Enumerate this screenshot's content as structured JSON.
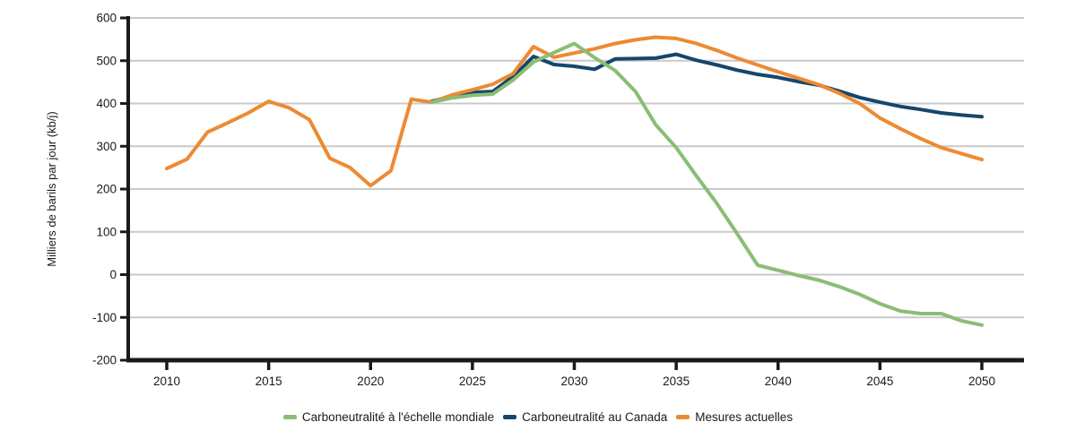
{
  "chart_data": {
    "type": "line",
    "title": "",
    "xlabel": "",
    "ylabel": "Milliers de barils par jour (kb/j)",
    "ylim": [
      -200,
      600
    ],
    "ytick_values": [
      600,
      500,
      400,
      300,
      200,
      100,
      0,
      -100,
      -200
    ],
    "xtick_values": [
      2010,
      2015,
      2020,
      2025,
      2030,
      2035,
      2040,
      2045,
      2050
    ],
    "grid": "horizontal",
    "legend_position": "bottom-center",
    "colors": {
      "grid": "#C9C9C9",
      "axis": "#1A1A1A",
      "text": "#1A1A1A",
      "background": "#FFFFFF"
    },
    "series": [
      {
        "name": "Carboneutralité à l'échelle mondiale",
        "color": "#8ABE75",
        "years": [
          2023,
          2024,
          2025,
          2026,
          2027,
          2028,
          2029,
          2030,
          2031,
          2032,
          2033,
          2034,
          2035,
          2036,
          2037,
          2038,
          2039,
          2040,
          2041,
          2042,
          2043,
          2044,
          2045,
          2046,
          2047,
          2048,
          2049,
          2050
        ],
        "values": [
          403,
          413,
          419,
          422,
          455,
          497,
          519,
          540,
          507,
          477,
          428,
          350,
          297,
          230,
          166,
          95,
          22,
          10,
          -2,
          -13,
          -28,
          -46,
          -68,
          -85,
          -91,
          -91,
          -108,
          -118
        ]
      },
      {
        "name": "Carboneutralité au Canada",
        "color": "#16466B",
        "years": [
          2023,
          2024,
          2025,
          2026,
          2027,
          2028,
          2029,
          2030,
          2031,
          2032,
          2033,
          2034,
          2035,
          2036,
          2037,
          2038,
          2039,
          2040,
          2041,
          2042,
          2043,
          2044,
          2045,
          2046,
          2047,
          2048,
          2049,
          2050
        ],
        "values": [
          405,
          417,
          426,
          428,
          463,
          510,
          491,
          487,
          480,
          504,
          505,
          506,
          515,
          501,
          490,
          478,
          468,
          461,
          451,
          443,
          429,
          414,
          403,
          393,
          386,
          378,
          373,
          369
        ]
      },
      {
        "name": "Mesures actuelles",
        "color": "#ED8A33",
        "years": [
          2010,
          2011,
          2012,
          2013,
          2014,
          2015,
          2016,
          2017,
          2018,
          2019,
          2020,
          2021,
          2022,
          2023,
          2024,
          2025,
          2026,
          2027,
          2028,
          2029,
          2030,
          2031,
          2032,
          2033,
          2034,
          2035,
          2036,
          2037,
          2038,
          2039,
          2040,
          2041,
          2042,
          2043,
          2044,
          2045,
          2046,
          2047,
          2048,
          2049,
          2050
        ],
        "values": [
          248,
          270,
          333,
          355,
          378,
          405,
          390,
          362,
          272,
          250,
          208,
          243,
          410,
          403,
          420,
          432,
          445,
          470,
          533,
          508,
          518,
          528,
          540,
          549,
          555,
          552,
          540,
          524,
          506,
          490,
          474,
          459,
          444,
          424,
          400,
          366,
          341,
          318,
          297,
          283,
          269
        ]
      }
    ]
  }
}
